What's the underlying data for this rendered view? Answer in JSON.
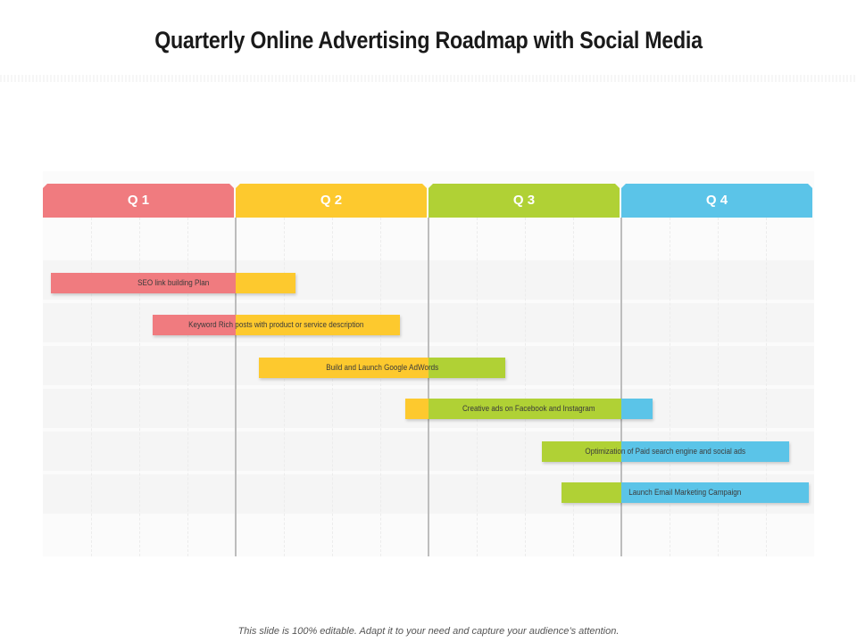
{
  "slide": {
    "title": "Quarterly Online Advertising Roadmap with Social Media",
    "footer": "This slide is 100% editable. Adapt it to your need and capture your audience’s attention."
  },
  "colors": {
    "q1": "#f07b7f",
    "q2": "#fdc92e",
    "q3": "#b0d135",
    "q4": "#5bc4e8"
  },
  "timeline": {
    "quarters": [
      "Q 1",
      "Q 2",
      "Q 3",
      "Q 4"
    ],
    "tasks": [
      {
        "label": "SEO link building Plan",
        "start_quarter": 0.04,
        "end_quarter": 1.31
      },
      {
        "label": "Keyword Rich posts with product or service description",
        "start_quarter": 0.57,
        "end_quarter": 1.85
      },
      {
        "label": "Build and Launch Google AdWords",
        "start_quarter": 1.12,
        "end_quarter": 2.4
      },
      {
        "label": "Creative ads on Facebook and Instagram",
        "start_quarter": 1.88,
        "end_quarter": 3.16
      },
      {
        "label": "Optimization of Paid search engine and social ads",
        "start_quarter": 2.59,
        "end_quarter": 3.87
      },
      {
        "label": "Launch Email Marketing Campaign",
        "start_quarter": 2.69,
        "end_quarter": 3.97
      }
    ]
  }
}
